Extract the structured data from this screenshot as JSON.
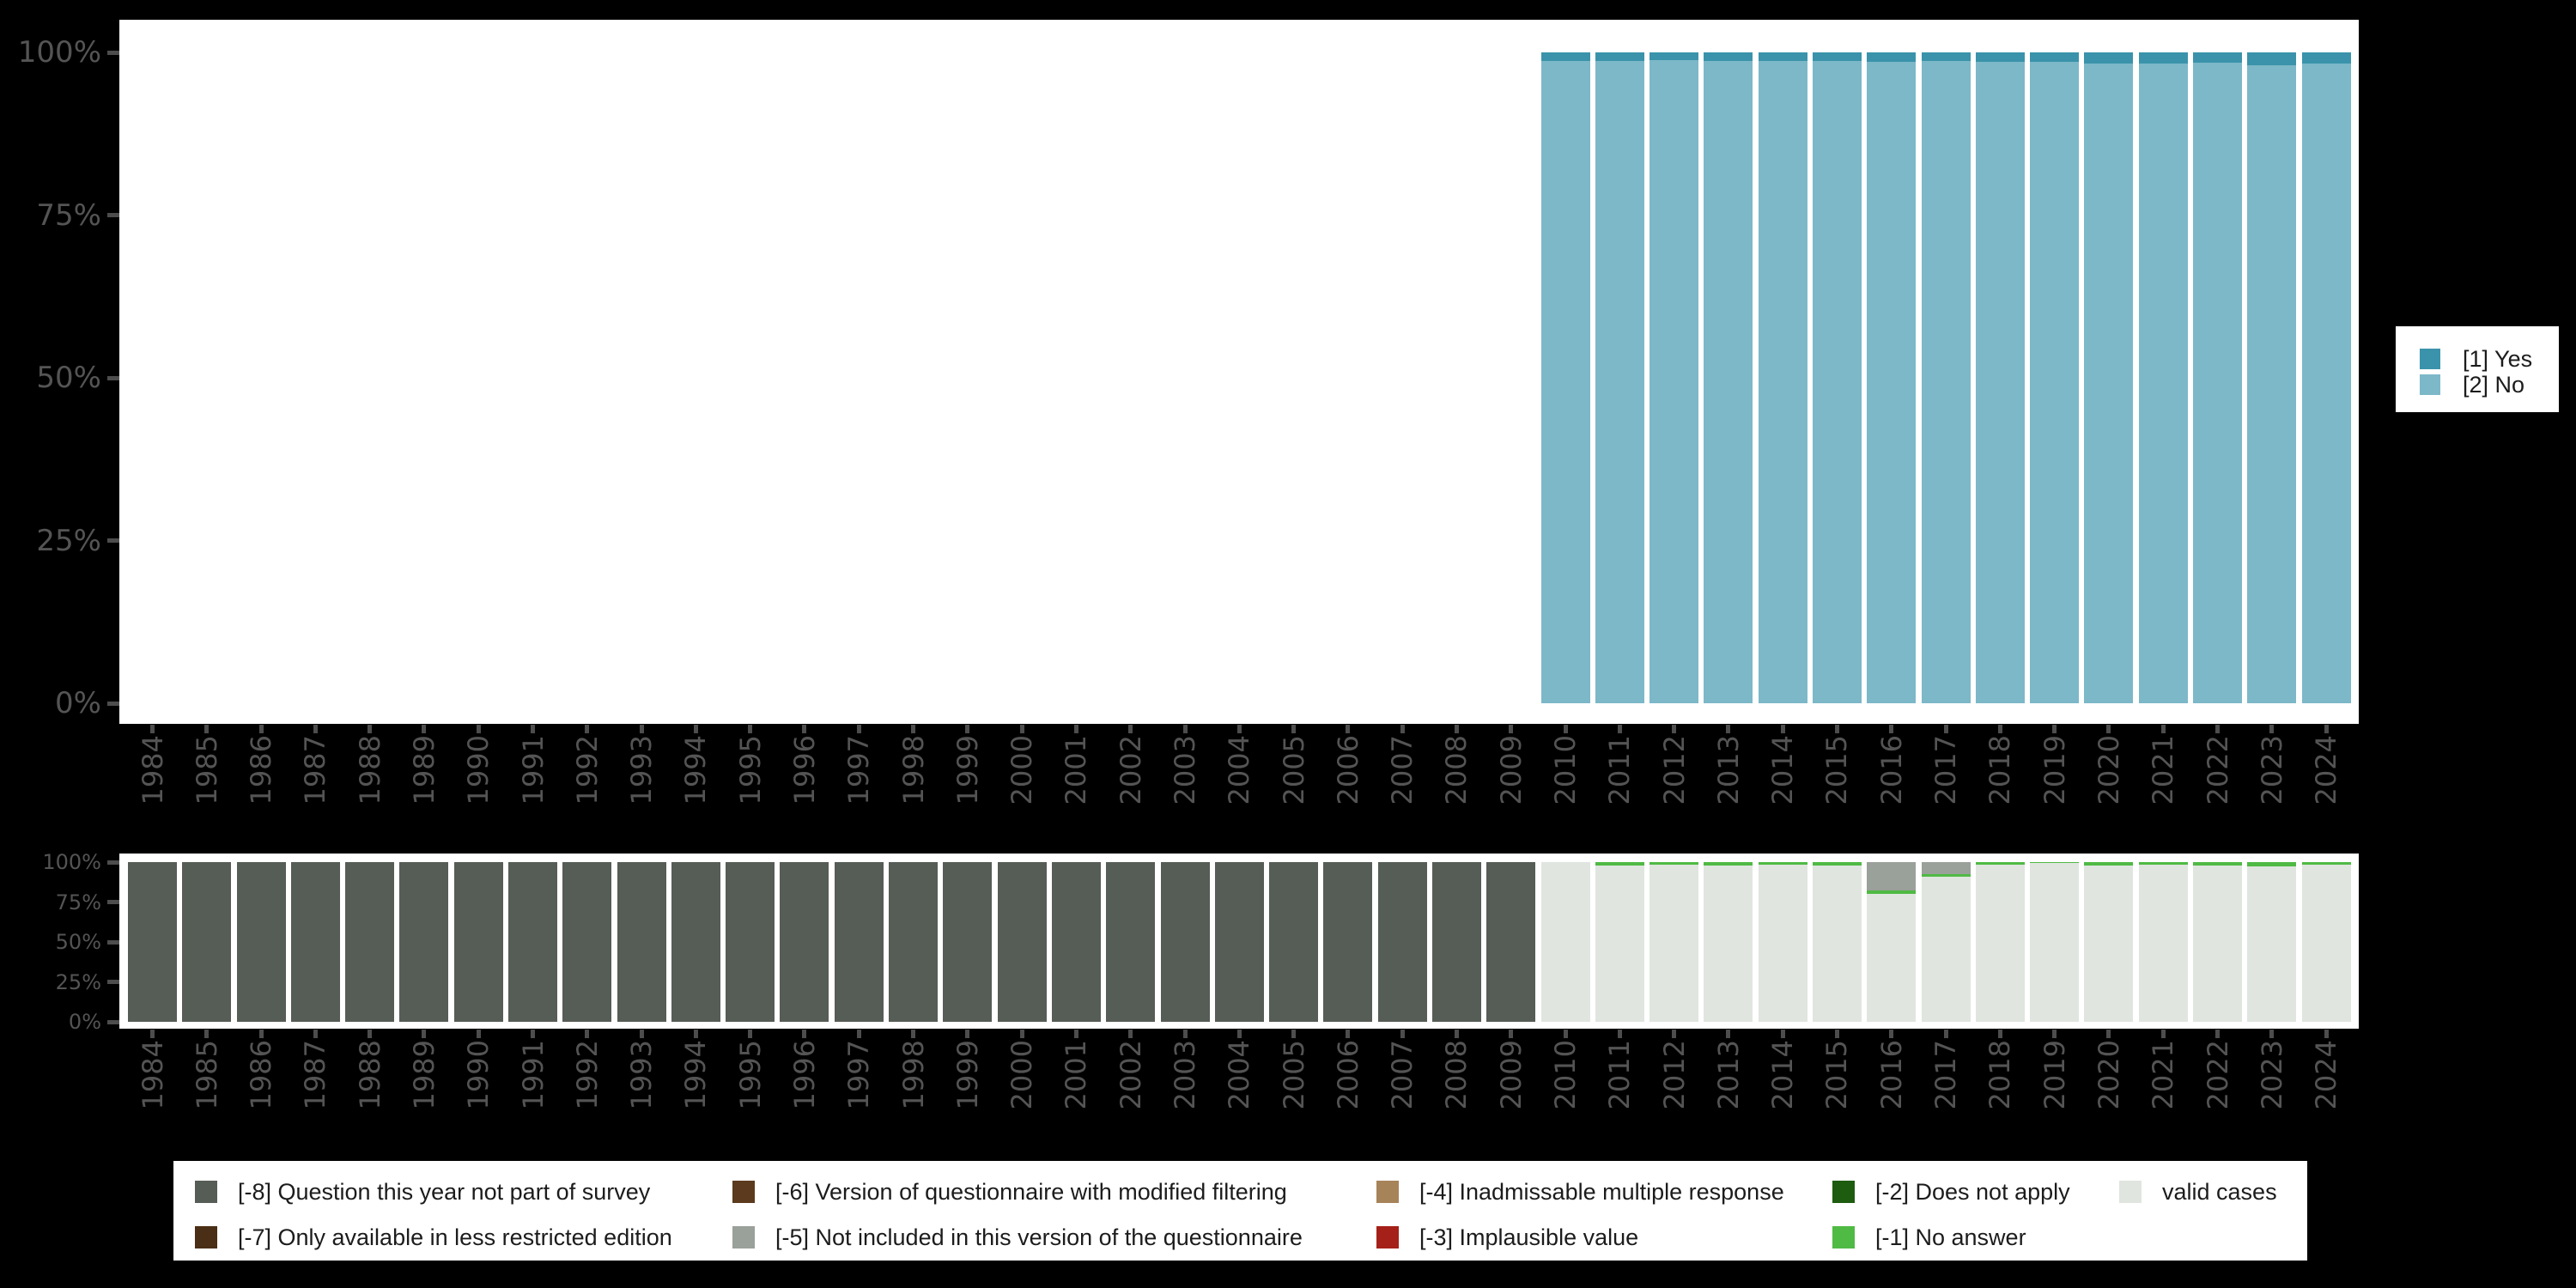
{
  "colors": {
    "yes": "#3a93ab",
    "no": "#7cb8c8",
    "m8": "#565c56",
    "m7": "#4a2e15",
    "m6": "#5c3a1d",
    "m5": "#9aa09a",
    "m4": "#a7835a",
    "m3": "#a52019",
    "m2": "#1e5c10",
    "m1": "#4fba44",
    "valid": "#e0e5e0",
    "background": "#000000",
    "panel": "#ffffff",
    "axis_text": "#545454",
    "legend_text": "#1c1c1c"
  },
  "categories": [
    "1984",
    "1985",
    "1986",
    "1987",
    "1988",
    "1989",
    "1990",
    "1991",
    "1992",
    "1993",
    "1994",
    "1995",
    "1996",
    "1997",
    "1998",
    "1999",
    "2000",
    "2001",
    "2002",
    "2003",
    "2004",
    "2005",
    "2006",
    "2007",
    "2008",
    "2009",
    "2010",
    "2011",
    "2012",
    "2013",
    "2014",
    "2015",
    "2016",
    "2017",
    "2018",
    "2019",
    "2020",
    "2021",
    "2022",
    "2023",
    "2024"
  ],
  "chart_data": [
    {
      "type": "bar",
      "stacking": "percent",
      "title": "",
      "xlabel": "",
      "ylabel": "",
      "ylim": [
        0,
        100
      ],
      "y_tick_labels": [
        "100%",
        "75%",
        "50%",
        "25%",
        "0%"
      ],
      "grid": false,
      "legend_position": "right",
      "series": [
        {
          "name": "[1] Yes",
          "key": "yes",
          "values": [
            null,
            null,
            null,
            null,
            null,
            null,
            null,
            null,
            null,
            null,
            null,
            null,
            null,
            null,
            null,
            null,
            null,
            null,
            null,
            null,
            null,
            null,
            null,
            null,
            null,
            null,
            1.3,
            1.3,
            1.2,
            1.3,
            1.3,
            1.3,
            1.5,
            1.3,
            1.5,
            1.5,
            1.7,
            1.7,
            1.6,
            2.0,
            1.7
          ]
        },
        {
          "name": "[2] No",
          "key": "no",
          "values": [
            null,
            null,
            null,
            null,
            null,
            null,
            null,
            null,
            null,
            null,
            null,
            null,
            null,
            null,
            null,
            null,
            null,
            null,
            null,
            null,
            null,
            null,
            null,
            null,
            null,
            null,
            98.7,
            98.7,
            98.8,
            98.7,
            98.7,
            98.7,
            98.5,
            98.7,
            98.5,
            98.5,
            98.3,
            98.3,
            98.4,
            98.0,
            98.3
          ]
        }
      ]
    },
    {
      "type": "bar",
      "stacking": "percent",
      "title": "",
      "xlabel": "",
      "ylabel": "",
      "ylim": [
        0,
        100
      ],
      "y_tick_labels": [
        "100%",
        "75%",
        "50%",
        "25%",
        "0%"
      ],
      "grid": false,
      "legend_position": "bottom",
      "series": [
        {
          "name": "[-8] Question this year not part of survey",
          "key": "m8",
          "values": [
            100,
            100,
            100,
            100,
            100,
            100,
            100,
            100,
            100,
            100,
            100,
            100,
            100,
            100,
            100,
            100,
            100,
            100,
            100,
            100,
            100,
            100,
            100,
            100,
            100,
            100,
            0,
            0,
            0,
            0,
            0,
            0,
            0,
            0,
            0,
            0,
            0,
            0,
            0,
            0,
            0
          ]
        },
        {
          "name": "[-5] Not included in this version of the questionnaire",
          "key": "m5",
          "values": [
            0,
            0,
            0,
            0,
            0,
            0,
            0,
            0,
            0,
            0,
            0,
            0,
            0,
            0,
            0,
            0,
            0,
            0,
            0,
            0,
            0,
            0,
            0,
            0,
            0,
            0,
            0,
            0,
            0,
            0,
            0,
            0,
            18,
            7.5,
            0,
            0,
            0,
            0,
            0,
            0,
            0
          ]
        },
        {
          "name": "[-1] No answer",
          "key": "m1",
          "values": [
            0,
            0,
            0,
            0,
            0,
            0,
            0,
            0,
            0,
            0,
            0,
            0,
            0,
            0,
            0,
            0,
            0,
            0,
            0,
            0,
            0,
            0,
            0,
            0,
            0,
            0,
            0,
            2,
            1.8,
            2,
            1.6,
            2.4,
            1.7,
            1.5,
            1.6,
            0.6,
            2,
            1.6,
            2,
            2.5,
            1.6
          ]
        },
        {
          "name": "valid cases",
          "key": "valid",
          "values": [
            0,
            0,
            0,
            0,
            0,
            0,
            0,
            0,
            0,
            0,
            0,
            0,
            0,
            0,
            0,
            0,
            0,
            0,
            0,
            0,
            0,
            0,
            0,
            0,
            0,
            0,
            100,
            98,
            98.2,
            98,
            98.4,
            97.6,
            80.3,
            91,
            98.4,
            99.4,
            98,
            98.4,
            98,
            97.5,
            98.4
          ]
        }
      ]
    }
  ],
  "legend_top": {
    "items": [
      {
        "key": "yes",
        "label": "[1] Yes"
      },
      {
        "key": "no",
        "label": "[2] No"
      }
    ]
  },
  "legend_bottom": {
    "items": [
      {
        "key": "m8",
        "label": "[-8] Question this year not part of survey",
        "col": 0,
        "row": 0
      },
      {
        "key": "m7",
        "label": "[-7] Only available in less restricted edition",
        "col": 0,
        "row": 1
      },
      {
        "key": "m6",
        "label": "[-6] Version of questionnaire with modified filtering",
        "col": 1,
        "row": 0
      },
      {
        "key": "m5",
        "label": "[-5] Not included in this version of the questionnaire",
        "col": 1,
        "row": 1
      },
      {
        "key": "m4",
        "label": "[-4] Inadmissable multiple response",
        "col": 2,
        "row": 0
      },
      {
        "key": "m3",
        "label": "[-3] Implausible value",
        "col": 2,
        "row": 1
      },
      {
        "key": "m2",
        "label": "[-2] Does not apply",
        "col": 3,
        "row": 0
      },
      {
        "key": "m1",
        "label": "[-1] No answer",
        "col": 3,
        "row": 1
      },
      {
        "key": "valid",
        "label": "valid cases",
        "col": 4,
        "row": 0
      }
    ]
  }
}
